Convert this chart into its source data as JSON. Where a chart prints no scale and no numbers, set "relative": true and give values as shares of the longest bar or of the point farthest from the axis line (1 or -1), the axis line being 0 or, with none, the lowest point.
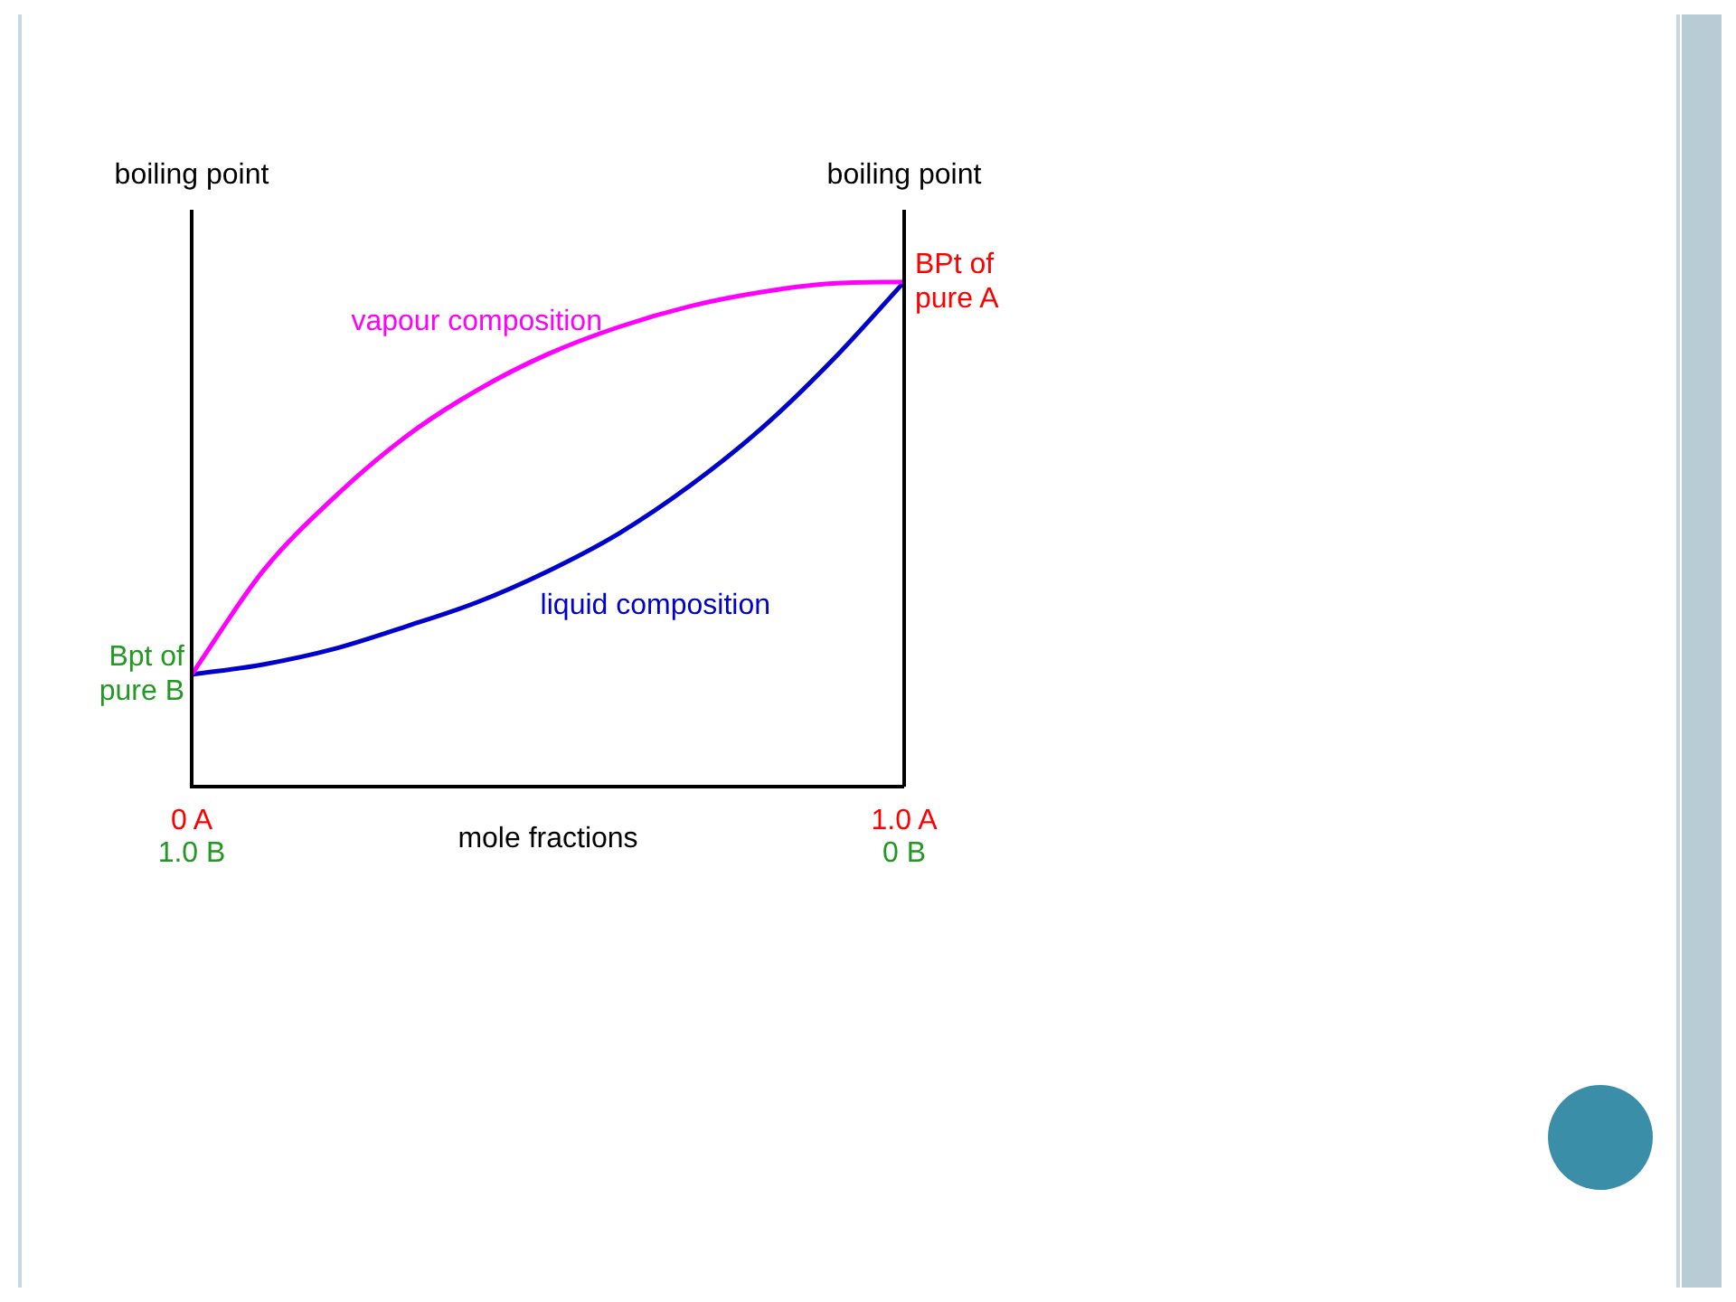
{
  "chart_data": {
    "type": "line",
    "relative": true,
    "ylabel": "boiling point",
    "y2label": "boiling point",
    "xlabel": "mole fractions",
    "categories": [
      "0 A\n1.0 B",
      null,
      null,
      null,
      null,
      null,
      null,
      null,
      null,
      null,
      "1.0 A\n0 B"
    ],
    "series": [
      {
        "name": "vapour composition",
        "color": "#ff00ff",
        "values": [
          0.222,
          0.427,
          0.573,
          0.693,
          0.785,
          0.857,
          0.911,
          0.952,
          0.98,
          0.997,
          1
        ]
      },
      {
        "name": "liquid composition",
        "color": "#0000cc",
        "values": [
          0.222,
          0.242,
          0.273,
          0.317,
          0.365,
          0.427,
          0.502,
          0.597,
          0.71,
          0.846,
          1
        ]
      }
    ],
    "annotations": [
      {
        "text": "Bpt of\npure B",
        "x": "0 A\n1.0 B",
        "y": 0.222
      },
      {
        "text": "BPt of\npure A",
        "x": "1.0 A\n0 B",
        "y": 1
      }
    ],
    "marker": "none",
    "line_style": "solid"
  }
}
